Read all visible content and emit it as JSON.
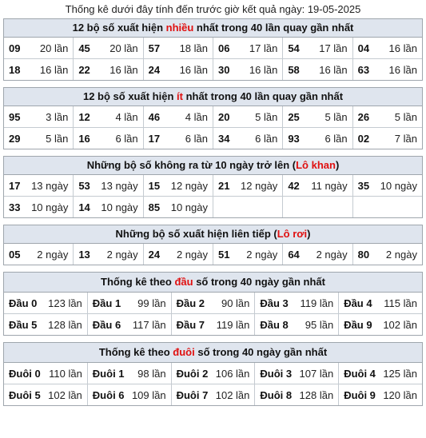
{
  "header_text": "Thống kê dưới đây tính đến trước giờ kết quả ngày: 19-05-2025",
  "sections": [
    {
      "title_pre": "12 bộ số xuất hiện ",
      "title_red": "nhiều",
      "title_post": " nhất trong 40 lần quay gần nhất",
      "rows": [
        [
          {
            "k": "09",
            "v": "20 lần"
          },
          {
            "k": "45",
            "v": "20 lần"
          },
          {
            "k": "57",
            "v": "18 lần"
          },
          {
            "k": "06",
            "v": "17 lần"
          },
          {
            "k": "54",
            "v": "17 lần"
          },
          {
            "k": "04",
            "v": "16 lần"
          }
        ],
        [
          {
            "k": "18",
            "v": "16 lần"
          },
          {
            "k": "22",
            "v": "16 lần"
          },
          {
            "k": "24",
            "v": "16 lần"
          },
          {
            "k": "30",
            "v": "16 lần"
          },
          {
            "k": "58",
            "v": "16 lần"
          },
          {
            "k": "63",
            "v": "16 lần"
          }
        ]
      ]
    },
    {
      "title_pre": "12 bộ số xuất hiện ",
      "title_red": "ít",
      "title_post": " nhất trong 40 lần quay gần nhất",
      "rows": [
        [
          {
            "k": "95",
            "v": "3 lần"
          },
          {
            "k": "12",
            "v": "4 lần"
          },
          {
            "k": "46",
            "v": "4 lần"
          },
          {
            "k": "20",
            "v": "5 lần"
          },
          {
            "k": "25",
            "v": "5 lần"
          },
          {
            "k": "26",
            "v": "5 lần"
          }
        ],
        [
          {
            "k": "29",
            "v": "5 lần"
          },
          {
            "k": "16",
            "v": "6 lần"
          },
          {
            "k": "17",
            "v": "6 lần"
          },
          {
            "k": "34",
            "v": "6 lần"
          },
          {
            "k": "93",
            "v": "6 lần"
          },
          {
            "k": "02",
            "v": "7 lần"
          }
        ]
      ]
    },
    {
      "title_pre": "Những bộ số không ra từ 10 ngày trở lên (",
      "title_red": "Lô khan",
      "title_post": ")",
      "rows": [
        [
          {
            "k": "17",
            "v": "13 ngày"
          },
          {
            "k": "53",
            "v": "13 ngày"
          },
          {
            "k": "15",
            "v": "12 ngày"
          },
          {
            "k": "21",
            "v": "12 ngày"
          },
          {
            "k": "42",
            "v": "11 ngày"
          },
          {
            "k": "35",
            "v": "10 ngày"
          }
        ],
        [
          {
            "k": "33",
            "v": "10 ngày"
          },
          {
            "k": "14",
            "v": "10 ngày"
          },
          {
            "k": "85",
            "v": "10 ngày"
          },
          {
            "k": "",
            "v": ""
          },
          {
            "k": "",
            "v": ""
          },
          {
            "k": "",
            "v": ""
          }
        ]
      ]
    },
    {
      "title_pre": "Những bộ số xuất hiện liên tiếp (",
      "title_red": "Lô rơi",
      "title_post": ")",
      "rows": [
        [
          {
            "k": "05",
            "v": "2 ngày"
          },
          {
            "k": "13",
            "v": "2 ngày"
          },
          {
            "k": "24",
            "v": "2 ngày"
          },
          {
            "k": "51",
            "v": "2 ngày"
          },
          {
            "k": "64",
            "v": "2 ngày"
          },
          {
            "k": "80",
            "v": "2 ngày"
          }
        ]
      ]
    },
    {
      "title_pre": "Thống kê theo ",
      "title_red": "đầu",
      "title_post": " số trong 40 ngày gần nhất",
      "rows": [
        [
          {
            "k": "Đầu 0",
            "v": "123 lần"
          },
          {
            "k": "Đầu 1",
            "v": "99 lần"
          },
          {
            "k": "Đầu 2",
            "v": "90 lần"
          },
          {
            "k": "Đầu 3",
            "v": "119 lần"
          },
          {
            "k": "Đầu 4",
            "v": "115 lần"
          }
        ],
        [
          {
            "k": "Đầu 5",
            "v": "128 lần"
          },
          {
            "k": "Đầu 6",
            "v": "117 lần"
          },
          {
            "k": "Đầu 7",
            "v": "119 lần"
          },
          {
            "k": "Đầu 8",
            "v": "95 lần"
          },
          {
            "k": "Đầu 9",
            "v": "102 lần"
          }
        ]
      ]
    },
    {
      "title_pre": "Thống kê theo ",
      "title_red": "đuôi",
      "title_post": " số trong 40 ngày gần nhất",
      "rows": [
        [
          {
            "k": "Đuôi 0",
            "v": "110 lần"
          },
          {
            "k": "Đuôi 1",
            "v": "98 lần"
          },
          {
            "k": "Đuôi 2",
            "v": "106 lần"
          },
          {
            "k": "Đuôi 3",
            "v": "107 lần"
          },
          {
            "k": "Đuôi 4",
            "v": "125 lần"
          }
        ],
        [
          {
            "k": "Đuôi 5",
            "v": "102 lần"
          },
          {
            "k": "Đuôi 6",
            "v": "109 lần"
          },
          {
            "k": "Đuôi 7",
            "v": "102 lần"
          },
          {
            "k": "Đuôi 8",
            "v": "128 lần"
          },
          {
            "k": "Đuôi 9",
            "v": "120 lần"
          }
        ]
      ]
    }
  ]
}
